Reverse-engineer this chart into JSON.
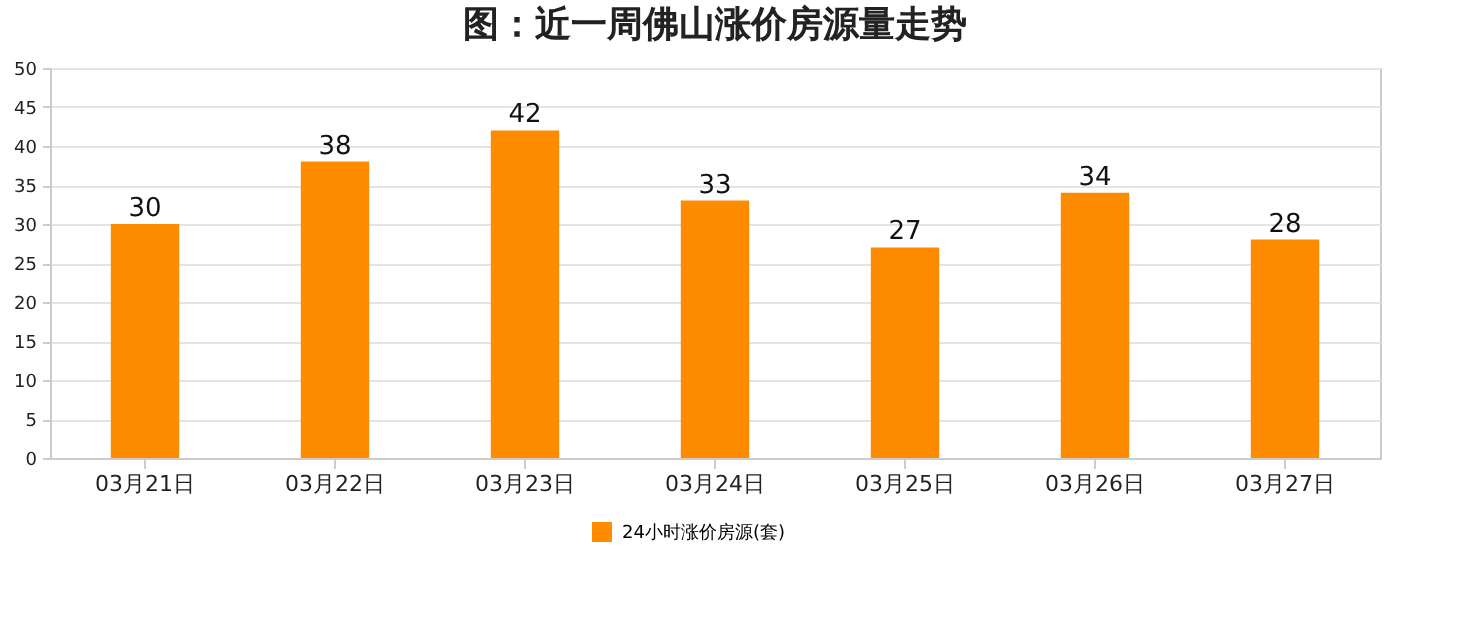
{
  "chart_data": {
    "type": "bar",
    "title": "图：近一周佛山涨价房源量走势",
    "categories": [
      "03月21日",
      "03月22日",
      "03月23日",
      "03月24日",
      "03月25日",
      "03月26日",
      "03月27日"
    ],
    "series": [
      {
        "name": "24小时涨价房源(套)",
        "color": "#ff8c00",
        "values": [
          30,
          38,
          42,
          33,
          27,
          34,
          28
        ]
      }
    ],
    "ylim": [
      0,
      50
    ],
    "yticks": [
      0,
      5,
      10,
      15,
      20,
      25,
      30,
      35,
      40,
      45,
      50
    ],
    "grid": "y",
    "legend": "bottom",
    "data_labels": true
  }
}
